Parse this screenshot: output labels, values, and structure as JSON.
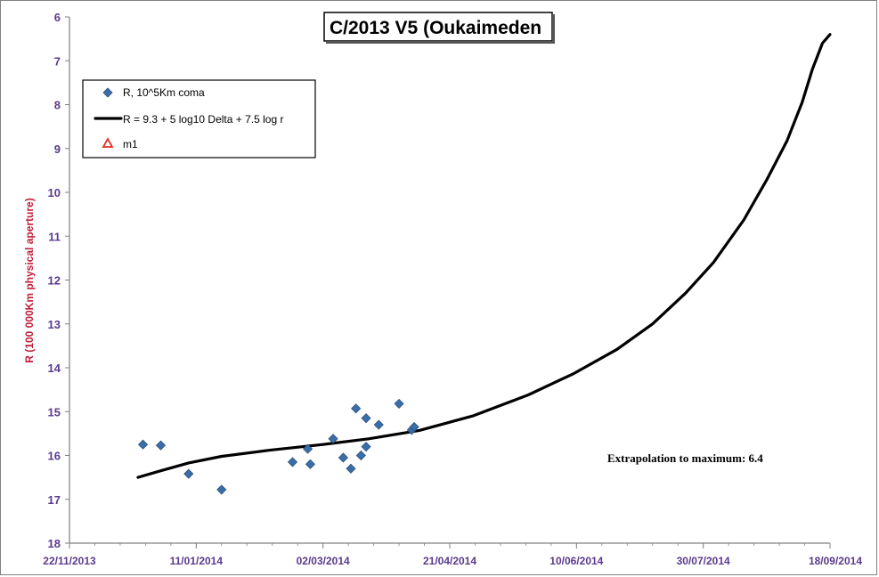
{
  "chart_data": {
    "type": "scatter",
    "title": "C/2013 V5 (Oukaimeden",
    "ylabel": "R (100 000Km physical aperture)",
    "xlabel": "",
    "xlim": [
      "2013-11-22",
      "2014-09-18"
    ],
    "ylim": [
      18,
      6
    ],
    "y_inverted": true,
    "y_ticks": [
      "6",
      "7",
      "8",
      "9",
      "10",
      "11",
      "12",
      "13",
      "14",
      "15",
      "16",
      "17",
      "18"
    ],
    "x_ticks": [
      "22/11/2013",
      "11/01/2014",
      "02/03/2014",
      "21/04/2014",
      "10/06/2014",
      "30/07/2014",
      "18/09/2014"
    ],
    "grid": false,
    "legend_position": "top-left",
    "legend": [
      {
        "label": "R, 10^5Km coma",
        "marker": "diamond",
        "color": "#3b6ea8"
      },
      {
        "label": "R = 9.3 + 5 log10 Delta + 7.5  log r",
        "marker": "line",
        "color": "#000000"
      },
      {
        "label": "m1",
        "marker": "triangle",
        "color": "#e0301e"
      }
    ],
    "annotation": "Extrapolation  to maximum:  6.4",
    "series": [
      {
        "name": "R, 10^5Km coma",
        "kind": "scatter",
        "points": [
          [
            "2013-12-21",
            15.75
          ],
          [
            "2013-12-28",
            15.77
          ],
          [
            "2014-01-08",
            16.42
          ],
          [
            "2014-01-21",
            16.78
          ],
          [
            "2014-02-18",
            16.15
          ],
          [
            "2014-02-24",
            15.85
          ],
          [
            "2014-02-25",
            16.2
          ],
          [
            "2014-03-06",
            15.62
          ],
          [
            "2014-03-10",
            16.05
          ],
          [
            "2014-03-13",
            16.3
          ],
          [
            "2014-03-15",
            14.93
          ],
          [
            "2014-03-17",
            16.0
          ],
          [
            "2014-03-19",
            15.15
          ],
          [
            "2014-03-19",
            15.8
          ],
          [
            "2014-03-24",
            15.3
          ],
          [
            "2014-04-01",
            14.82
          ],
          [
            "2014-04-06",
            15.42
          ],
          [
            "2014-04-07",
            15.35
          ]
        ]
      },
      {
        "name": "R = 9.3 + 5 log10 Delta + 7.5  log r",
        "kind": "line",
        "points": [
          [
            "2013-12-19",
            16.5
          ],
          [
            "2013-12-28",
            16.35
          ],
          [
            "2014-01-08",
            16.17
          ],
          [
            "2014-01-21",
            16.02
          ],
          [
            "2014-02-09",
            15.88
          ],
          [
            "2014-03-02",
            15.75
          ],
          [
            "2014-03-20",
            15.62
          ],
          [
            "2014-04-09",
            15.43
          ],
          [
            "2014-04-30",
            15.1
          ],
          [
            "2014-05-22",
            14.62
          ],
          [
            "2014-06-09",
            14.13
          ],
          [
            "2014-06-26",
            13.58
          ],
          [
            "2014-07-10",
            13.0
          ],
          [
            "2014-07-23",
            12.3
          ],
          [
            "2014-08-03",
            11.6
          ],
          [
            "2014-08-15",
            10.63
          ],
          [
            "2014-08-24",
            9.72
          ],
          [
            "2014-09-01",
            8.83
          ],
          [
            "2014-09-07",
            7.95
          ],
          [
            "2014-09-11",
            7.2
          ],
          [
            "2014-09-15",
            6.6
          ],
          [
            "2014-09-18",
            6.4
          ]
        ]
      }
    ]
  }
}
